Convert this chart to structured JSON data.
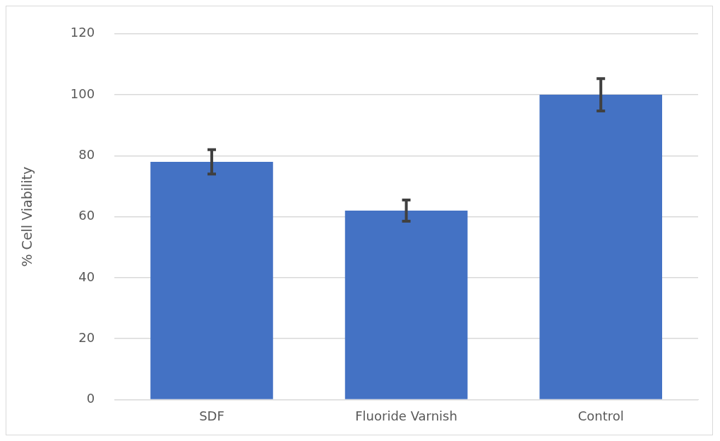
{
  "chart_data": {
    "type": "bar",
    "ylabel": "% Cell Viability",
    "categories": [
      "SDF",
      "Fluoride Varnish",
      "Control"
    ],
    "values": [
      78,
      62,
      100
    ],
    "errors": [
      4,
      3.5,
      5.3
    ],
    "color": "#4472c4",
    "ylim": [
      0,
      120
    ],
    "yticks": [
      0,
      20,
      40,
      60,
      80,
      100,
      120
    ],
    "grid": "y",
    "legend": false
  }
}
